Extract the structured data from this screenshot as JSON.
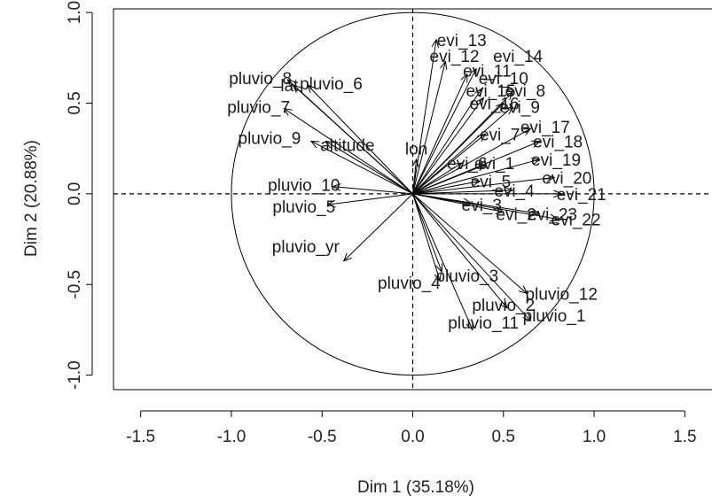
{
  "chart_data": {
    "type": "scatter",
    "subtype": "pca-variables-factor-map",
    "xlabel": "Dim 1 (35.18%)",
    "ylabel": "Dim 2 (20.88%)",
    "xlim": [
      -1.65,
      1.65
    ],
    "ylim": [
      -1.08,
      1.02
    ],
    "xticks": [
      -1.5,
      -1.0,
      -0.5,
      0.0,
      0.5,
      1.0,
      1.5
    ],
    "xtick_labels": [
      "-1.5",
      "-1.0",
      "-0.5",
      "0.0",
      "0.5",
      "1.0",
      "1.5"
    ],
    "yticks": [
      -1.0,
      -0.5,
      0.0,
      0.5,
      1.0
    ],
    "ytick_labels": [
      "-1.0",
      "-0.5",
      "0.0",
      "0.5",
      "1.0"
    ],
    "unit_circle": true,
    "reference_lines": [
      0,
      0
    ],
    "variables": [
      {
        "label": "evi_13",
        "x": 0.13,
        "y": 0.85,
        "lx": 0.27,
        "ly": 0.85
      },
      {
        "label": "evi_12",
        "x": 0.18,
        "y": 0.73,
        "lx": 0.23,
        "ly": 0.76
      },
      {
        "label": "evi_14",
        "x": 0.35,
        "y": 0.69,
        "lx": 0.58,
        "ly": 0.76
      },
      {
        "label": "evi_11",
        "x": 0.3,
        "y": 0.66,
        "lx": 0.41,
        "ly": 0.68
      },
      {
        "label": "evi_10",
        "x": 0.38,
        "y": 0.58,
        "lx": 0.5,
        "ly": 0.64
      },
      {
        "label": "evi_15",
        "x": 0.39,
        "y": 0.53,
        "lx": 0.43,
        "ly": 0.57
      },
      {
        "label": "evi_8",
        "x": 0.55,
        "y": 0.56,
        "lx": 0.62,
        "ly": 0.57
      },
      {
        "label": "evi_16",
        "x": 0.5,
        "y": 0.5,
        "lx": 0.45,
        "ly": 0.5
      },
      {
        "label": "evi_9",
        "x": 0.55,
        "y": 0.48,
        "lx": 0.59,
        "ly": 0.48
      },
      {
        "label": "evi_7",
        "x": 0.4,
        "y": 0.33,
        "lx": 0.48,
        "ly": 0.33
      },
      {
        "label": "evi_17",
        "x": 0.65,
        "y": 0.36,
        "lx": 0.73,
        "ly": 0.37
      },
      {
        "label": "evi_18",
        "x": 0.7,
        "y": 0.29,
        "lx": 0.8,
        "ly": 0.29
      },
      {
        "label": "evi_19",
        "x": 0.7,
        "y": 0.19,
        "lx": 0.79,
        "ly": 0.19
      },
      {
        "label": "evi_6",
        "x": 0.27,
        "y": 0.17,
        "lx": 0.3,
        "ly": 0.17
      },
      {
        "label": "evi_1",
        "x": 0.4,
        "y": 0.16,
        "lx": 0.45,
        "ly": 0.17
      },
      {
        "label": "evi_20",
        "x": 0.78,
        "y": 0.09,
        "lx": 0.85,
        "ly": 0.09
      },
      {
        "label": "evi_5",
        "x": 0.37,
        "y": 0.07,
        "lx": 0.43,
        "ly": 0.07
      },
      {
        "label": "evi_21",
        "x": 0.82,
        "y": 0.0,
        "lx": 0.93,
        "ly": 0.0
      },
      {
        "label": "evi_4",
        "x": 0.55,
        "y": 0.02,
        "lx": 0.56,
        "ly": 0.02
      },
      {
        "label": "evi_3",
        "x": 0.32,
        "y": -0.05,
        "lx": 0.38,
        "ly": -0.06
      },
      {
        "label": "evi_2",
        "x": 0.5,
        "y": -0.1,
        "lx": 0.57,
        "ly": -0.11
      },
      {
        "label": "evi_23",
        "x": 0.7,
        "y": -0.11,
        "lx": 0.77,
        "ly": -0.11
      },
      {
        "label": "evi_22",
        "x": 0.8,
        "y": -0.14,
        "lx": 0.9,
        "ly": -0.14
      },
      {
        "label": "lon",
        "x": 0.02,
        "y": 0.19,
        "lx": 0.02,
        "ly": 0.25
      },
      {
        "label": "lat",
        "x": -0.66,
        "y": 0.6,
        "lx": -0.68,
        "ly": 0.6
      },
      {
        "label": "pluvio_8",
        "x": -0.69,
        "y": 0.63,
        "lx": -0.84,
        "ly": 0.64
      },
      {
        "label": "pluvio_6",
        "x": -0.58,
        "y": 0.6,
        "lx": -0.45,
        "ly": 0.61
      },
      {
        "label": "pluvio_7",
        "x": -0.71,
        "y": 0.47,
        "lx": -0.85,
        "ly": 0.48
      },
      {
        "label": "pluvio_9",
        "x": -0.56,
        "y": 0.29,
        "lx": -0.79,
        "ly": 0.31
      },
      {
        "label": "altitude",
        "x": -0.48,
        "y": 0.29,
        "lx": -0.36,
        "ly": 0.27
      },
      {
        "label": "pluvio_10",
        "x": -0.44,
        "y": 0.04,
        "lx": -0.6,
        "ly": 0.05
      },
      {
        "label": "pluvio_5",
        "x": -0.47,
        "y": -0.06,
        "lx": -0.6,
        "ly": -0.07
      },
      {
        "label": "pluvio_yr",
        "x": -0.38,
        "y": -0.37,
        "lx": -0.59,
        "ly": -0.29
      },
      {
        "label": "pluvio_4",
        "x": 0.15,
        "y": -0.48,
        "lx": -0.02,
        "ly": -0.49
      },
      {
        "label": "pluvio_3",
        "x": 0.16,
        "y": -0.43,
        "lx": 0.3,
        "ly": -0.45
      },
      {
        "label": "pluvio_2",
        "x": 0.52,
        "y": -0.63,
        "lx": 0.5,
        "ly": -0.61
      },
      {
        "label": "pluvio_12",
        "x": 0.63,
        "y": -0.55,
        "lx": 0.82,
        "ly": -0.55
      },
      {
        "label": "pluvio_11",
        "x": 0.33,
        "y": -0.75,
        "lx": 0.39,
        "ly": -0.71
      },
      {
        "label": "pluvio_1",
        "x": 0.65,
        "y": -0.7,
        "lx": 0.78,
        "ly": -0.67
      }
    ]
  }
}
